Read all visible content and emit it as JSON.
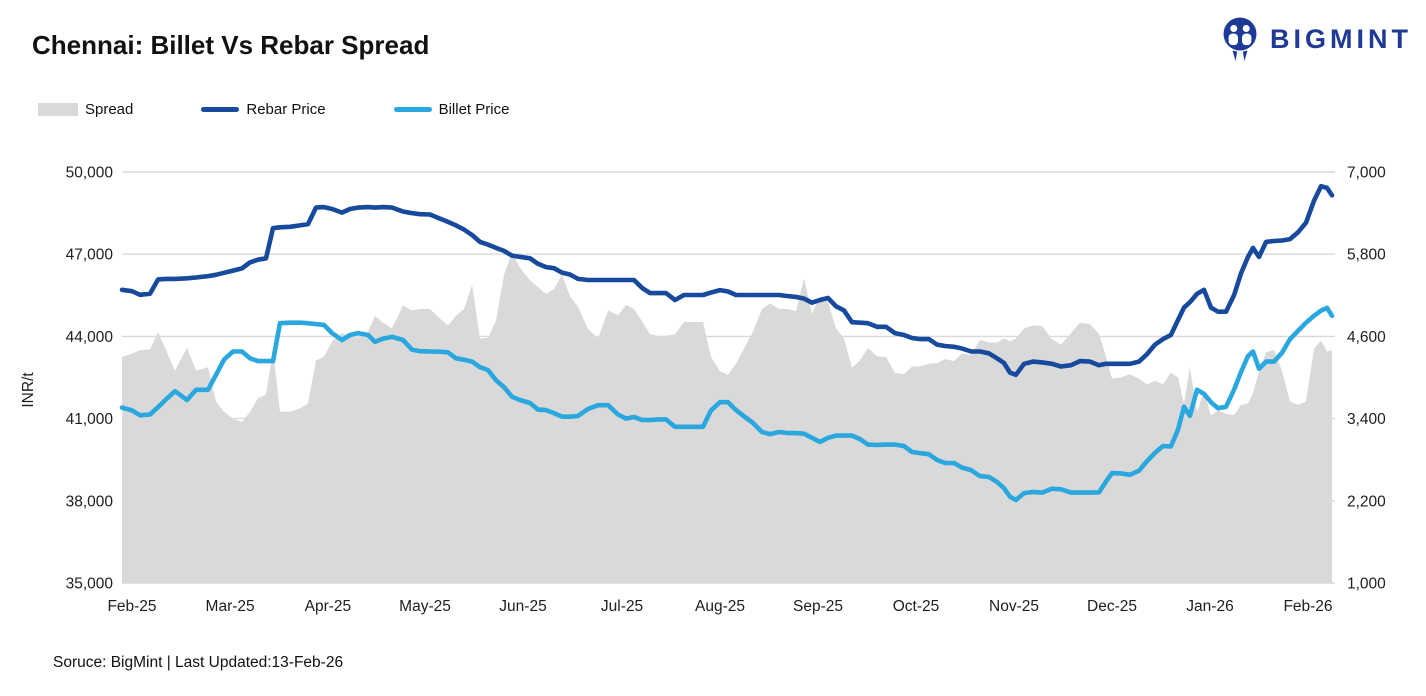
{
  "header": {
    "title": "Chennai: Billet Vs Rebar Spread",
    "brand": "BIGMINT"
  },
  "legend": {
    "items": [
      {
        "label": "Spread"
      },
      {
        "label": "Rebar Price"
      },
      {
        "label": "Billet Price"
      }
    ]
  },
  "footer": {
    "text": "Soruce: BigMint | Last Updated:13-Feb-26"
  },
  "colors": {
    "brand_blue": "#1e3a96",
    "rebar": "#17499d",
    "billet": "#2aa7df",
    "spread": "#d9d9d9",
    "grid": "#d9d9d9"
  },
  "chart_data": {
    "type": "combo (area + 2 lines)",
    "x_range": "Feb-2025 to 13-Feb-2026",
    "grid": true,
    "legend_position": "top-left",
    "x_ticks": [
      {
        "label": "Feb-25",
        "t": 0.0083
      },
      {
        "label": "Mar-25",
        "t": 0.0893
      },
      {
        "label": "Apr-25",
        "t": 0.1702
      },
      {
        "label": "May-25",
        "t": 0.2504
      },
      {
        "label": "Jun-25",
        "t": 0.3314
      },
      {
        "label": "Jul-25",
        "t": 0.4132
      },
      {
        "label": "Aug-25",
        "t": 0.4942
      },
      {
        "label": "Sep-25",
        "t": 0.5752
      },
      {
        "label": "Oct-25",
        "t": 0.6562
      },
      {
        "label": "Nov-25",
        "t": 0.7372
      },
      {
        "label": "Dec-25",
        "t": 0.8182
      },
      {
        "label": "Jan-26",
        "t": 0.8992
      },
      {
        "label": "Feb-26",
        "t": 0.9802
      }
    ],
    "left_axis": {
      "label": "INR/t",
      "min": 35000,
      "max": 50000,
      "ticks": [
        35000,
        38000,
        41000,
        44000,
        47000,
        50000
      ]
    },
    "right_axis": {
      "min": 1000,
      "max": 7000,
      "ticks": [
        1000,
        2200,
        3400,
        4600,
        5800,
        7000
      ]
    },
    "series": [
      {
        "name": "Spread",
        "type": "area",
        "axis": "right",
        "color": "#d9d9d9"
      },
      {
        "name": "Rebar Price",
        "type": "line",
        "axis": "left",
        "color": "#17499d"
      },
      {
        "name": "Billet Price",
        "type": "line",
        "axis": "left",
        "color": "#2aa7df"
      }
    ],
    "points": {
      "t": [
        0,
        0.0083,
        0.0149,
        0.0231,
        0.0298,
        0.0364,
        0.0438,
        0.0537,
        0.0612,
        0.0711,
        0.0777,
        0.0843,
        0.0917,
        0.0992,
        0.1058,
        0.1124,
        0.119,
        0.1248,
        0.1306,
        0.1388,
        0.1471,
        0.1537,
        0.1603,
        0.1669,
        0.1736,
        0.1818,
        0.1884,
        0.195,
        0.2033,
        0.2091,
        0.2157,
        0.2231,
        0.2322,
        0.2397,
        0.2463,
        0.2545,
        0.2628,
        0.2694,
        0.276,
        0.2826,
        0.2893,
        0.2959,
        0.3025,
        0.3091,
        0.3157,
        0.3223,
        0.3289,
        0.3372,
        0.3438,
        0.3504,
        0.357,
        0.3636,
        0.3702,
        0.3769,
        0.3851,
        0.3934,
        0.4017,
        0.4099,
        0.4165,
        0.4231,
        0.4298,
        0.4364,
        0.443,
        0.4496,
        0.457,
        0.4645,
        0.4727,
        0.4802,
        0.4868,
        0.4942,
        0.5008,
        0.5074,
        0.5149,
        0.5215,
        0.5289,
        0.5355,
        0.543,
        0.5504,
        0.557,
        0.5636,
        0.5702,
        0.5769,
        0.5835,
        0.5901,
        0.5967,
        0.6033,
        0.6099,
        0.6165,
        0.624,
        0.6314,
        0.6388,
        0.6463,
        0.6529,
        0.6595,
        0.6669,
        0.6736,
        0.6802,
        0.6876,
        0.6942,
        0.7017,
        0.7091,
        0.7165,
        0.7231,
        0.7289,
        0.7339,
        0.7388,
        0.7455,
        0.7529,
        0.7603,
        0.7686,
        0.776,
        0.7843,
        0.7917,
        0.8,
        0.8074,
        0.8132,
        0.8182,
        0.8256,
        0.8331,
        0.8405,
        0.8471,
        0.8537,
        0.8603,
        0.8669,
        0.8727,
        0.8777,
        0.8826,
        0.8884,
        0.8942,
        0.9,
        0.9058,
        0.9124,
        0.919,
        0.9248,
        0.9306,
        0.9347,
        0.9397,
        0.9455,
        0.9521,
        0.9587,
        0.9653,
        0.9719,
        0.9785,
        0.9851,
        0.9909,
        0.9959,
        1
      ],
      "rebar": [
        45700,
        45650,
        45520,
        45560,
        46080,
        46100,
        46100,
        46120,
        46150,
        46200,
        46250,
        46320,
        46400,
        46480,
        46700,
        46800,
        46850,
        47950,
        47980,
        48000,
        48050,
        48100,
        48700,
        48720,
        48650,
        48520,
        48650,
        48700,
        48720,
        48700,
        48720,
        48700,
        48560,
        48500,
        48460,
        48450,
        48300,
        48180,
        48050,
        47900,
        47700,
        47450,
        47350,
        47230,
        47120,
        46950,
        46900,
        46850,
        46650,
        46530,
        46490,
        46330,
        46260,
        46100,
        46060,
        46060,
        46060,
        46060,
        46060,
        46060,
        45770,
        45580,
        45580,
        45580,
        45330,
        45510,
        45510,
        45510,
        45600,
        45690,
        45640,
        45510,
        45510,
        45510,
        45510,
        45510,
        45510,
        45470,
        45440,
        45380,
        45230,
        45330,
        45400,
        45100,
        44950,
        44520,
        44500,
        44480,
        44350,
        44350,
        44120,
        44050,
        43940,
        43900,
        43900,
        43700,
        43650,
        43620,
        43560,
        43450,
        43450,
        43380,
        43200,
        43030,
        42680,
        42600,
        43000,
        43080,
        43050,
        43000,
        42900,
        42950,
        43100,
        43080,
        42950,
        43000,
        43000,
        43000,
        43000,
        43080,
        43350,
        43700,
        43900,
        44050,
        44600,
        45050,
        45250,
        45550,
        45700,
        45050,
        44900,
        44900,
        45500,
        46300,
        46900,
        47230,
        46900,
        47450,
        47480,
        47500,
        47550,
        47800,
        48150,
        48950,
        49480,
        49420,
        49150
      ],
      "billet": [
        41400,
        41300,
        41120,
        41150,
        41420,
        41700,
        42000,
        41680,
        42050,
        42050,
        42600,
        43150,
        43450,
        43450,
        43200,
        43100,
        43100,
        43100,
        44480,
        44500,
        44500,
        44480,
        44450,
        44420,
        44120,
        43870,
        44050,
        44120,
        44050,
        43800,
        43920,
        43980,
        43870,
        43520,
        43460,
        43450,
        43440,
        43420,
        43200,
        43150,
        43080,
        42880,
        42770,
        42400,
        42150,
        41800,
        41680,
        41570,
        41330,
        41310,
        41200,
        41070,
        41070,
        41100,
        41350,
        41490,
        41490,
        41150,
        41000,
        41060,
        40950,
        40950,
        40970,
        40970,
        40700,
        40700,
        40700,
        40700,
        41300,
        41600,
        41600,
        41310,
        41060,
        40840,
        40510,
        40430,
        40510,
        40470,
        40470,
        40450,
        40300,
        40150,
        40300,
        40380,
        40380,
        40380,
        40250,
        40050,
        40040,
        40050,
        40050,
        40000,
        39780,
        39740,
        39700,
        39490,
        39380,
        39380,
        39210,
        39120,
        38900,
        38870,
        38690,
        38460,
        38150,
        38030,
        38280,
        38320,
        38300,
        38440,
        38420,
        38300,
        38300,
        38300,
        38310,
        38700,
        39010,
        39000,
        38950,
        39100,
        39450,
        39750,
        40000,
        39980,
        40600,
        41430,
        41100,
        42050,
        41900,
        41600,
        41380,
        41430,
        42050,
        42700,
        43280,
        43450,
        42820,
        43080,
        43080,
        43400,
        43900,
        44200,
        44500,
        44750,
        44940,
        45040,
        44750
      ],
      "spread": [
        4300,
        4350,
        4400,
        4410,
        4660,
        4400,
        4100,
        4440,
        4100,
        4150,
        3650,
        3500,
        3400,
        3350,
        3500,
        3700,
        3750,
        4400,
        3500,
        3500,
        3550,
        3620,
        4250,
        4300,
        4530,
        4650,
        4600,
        4580,
        4670,
        4900,
        4800,
        4720,
        5050,
        4980,
        5000,
        5000,
        4860,
        4760,
        4900,
        5000,
        5350,
        4570,
        4580,
        4830,
        5500,
        5820,
        5600,
        5420,
        5320,
        5220,
        5290,
        5500,
        5190,
        5030,
        4710,
        4570,
        4980,
        4910,
        5060,
        5000,
        4820,
        4630,
        4610,
        4610,
        4630,
        4810,
        4810,
        4810,
        4300,
        4090,
        4040,
        4200,
        4450,
        4670,
        5000,
        5080,
        5000,
        5000,
        4970,
        5450,
        4930,
        5180,
        5100,
        4720,
        4570,
        4140,
        4250,
        4430,
        4310,
        4300,
        4070,
        4050,
        4160,
        4160,
        4200,
        4210,
        4270,
        4240,
        4350,
        4330,
        4550,
        4510,
        4510,
        4570,
        4530,
        4570,
        4720,
        4760,
        4750,
        4560,
        4480,
        4650,
        4800,
        4780,
        4640,
        4300,
        3990,
        4000,
        4050,
        3980,
        3900,
        3950,
        3900,
        4070,
        4000,
        3620,
        4150,
        3500,
        3800,
        3450,
        3520,
        3470,
        3450,
        3600,
        3620,
        3780,
        4080,
        4370,
        4400,
        4100,
        3650,
        3600,
        3650,
        4420,
        4540,
        4380,
        4400
      ]
    }
  }
}
